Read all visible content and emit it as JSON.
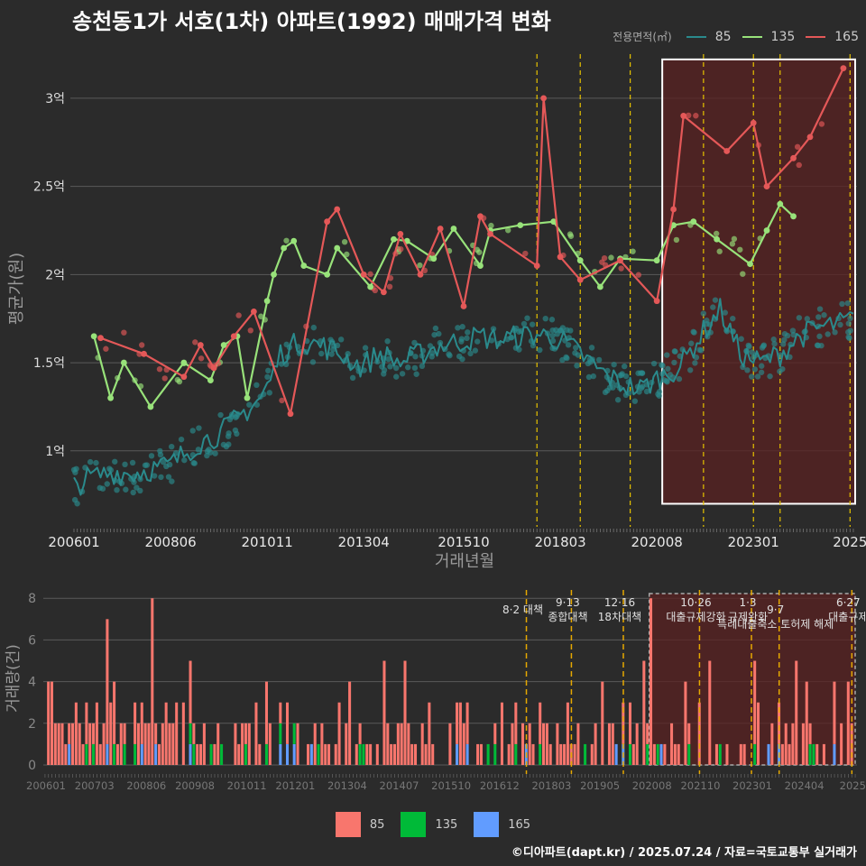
{
  "title": "송천동1가 서호(1차) 아파트(1992) 매매가격 변화",
  "footer": "©디아파트(dapt.kr) / 2025.07.24 / 자료=국토교통부 실거래가",
  "colors": {
    "s85": "#2a8a8c",
    "s135": "#98e27a",
    "s165": "#e45858",
    "bar85": "#f8766d",
    "bar135": "#00ba38",
    "bar165": "#619cff",
    "policy": "#e6c200",
    "highlight": "#5a2222",
    "bg": "#2b2b2b",
    "grid": "#5a5a5a"
  },
  "chart_data": [
    {
      "type": "line",
      "legend_title": "전용면적(㎡)",
      "legend_placement": "top-right",
      "xlabel": "거래년월",
      "ylabel": "평균가(원)",
      "x_tick_labels": [
        "200601",
        "200806",
        "201011",
        "201304",
        "201510",
        "201803",
        "202008",
        "202301",
        "2025"
      ],
      "y_ticks": [
        {
          "value": 1.0,
          "label": "1억"
        },
        {
          "value": 1.5,
          "label": "1.5억"
        },
        {
          "value": 2.0,
          "label": "2억"
        },
        {
          "value": 2.5,
          "label": "2.5억"
        },
        {
          "value": 3.0,
          "label": "3억"
        }
      ],
      "ylim": [
        0.6,
        3.25
      ],
      "x_range": [
        "2006-01",
        "2025-07"
      ],
      "grid": true,
      "policy_lines": [
        "2017-08",
        "2018-09",
        "2019-12",
        "2021-10",
        "2023-01",
        "2023-09",
        "2025-06"
      ],
      "highlight_range": [
        "2020-08",
        "2025-07"
      ],
      "series": [
        {
          "name": "85",
          "points": [
            [
              "2006-01",
              0.8
            ],
            [
              "2006-06",
              0.85
            ],
            [
              "2007-01",
              0.88
            ],
            [
              "2007-06",
              0.87
            ],
            [
              "2008-01",
              0.9
            ],
            [
              "2008-06",
              0.92
            ],
            [
              "2008-11",
              1.0
            ],
            [
              "2009-03",
              1.05
            ],
            [
              "2009-09",
              1.1
            ],
            [
              "2010-03",
              1.2
            ],
            [
              "2010-09",
              1.3
            ],
            [
              "2010-12",
              1.4
            ],
            [
              "2011-03",
              1.55
            ],
            [
              "2011-09",
              1.62
            ],
            [
              "2012-03",
              1.6
            ],
            [
              "2012-09",
              1.55
            ],
            [
              "2013-03",
              1.48
            ],
            [
              "2013-09",
              1.55
            ],
            [
              "2014-03",
              1.5
            ],
            [
              "2014-09",
              1.55
            ],
            [
              "2015-03",
              1.6
            ],
            [
              "2015-09",
              1.62
            ],
            [
              "2016-03",
              1.65
            ],
            [
              "2016-09",
              1.63
            ],
            [
              "2017-03",
              1.65
            ],
            [
              "2017-09",
              1.66
            ],
            [
              "2018-03",
              1.63
            ],
            [
              "2018-09",
              1.55
            ],
            [
              "2019-03",
              1.45
            ],
            [
              "2019-09",
              1.38
            ],
            [
              "2020-03",
              1.35
            ],
            [
              "2020-09",
              1.42
            ],
            [
              "2021-03",
              1.48
            ],
            [
              "2021-09",
              1.65
            ],
            [
              "2022-03",
              1.8
            ],
            [
              "2022-09",
              1.55
            ],
            [
              "2023-03",
              1.5
            ],
            [
              "2023-09",
              1.55
            ],
            [
              "2024-03",
              1.65
            ],
            [
              "2024-09",
              1.7
            ],
            [
              "2025-03",
              1.72
            ],
            [
              "2025-07",
              1.75
            ]
          ]
        },
        {
          "name": "135",
          "points": [
            [
              "2006-07",
              1.65
            ],
            [
              "2006-12",
              1.3
            ],
            [
              "2007-04",
              1.5
            ],
            [
              "2007-12",
              1.25
            ],
            [
              "2008-10",
              1.5
            ],
            [
              "2009-06",
              1.4
            ],
            [
              "2009-10",
              1.6
            ],
            [
              "2010-02",
              1.65
            ],
            [
              "2010-05",
              1.3
            ],
            [
              "2010-11",
              1.85
            ],
            [
              "2011-01",
              2.0
            ],
            [
              "2011-04",
              2.15
            ],
            [
              "2011-07",
              2.19
            ],
            [
              "2011-10",
              2.05
            ],
            [
              "2012-05",
              2.0
            ],
            [
              "2012-08",
              2.15
            ],
            [
              "2013-06",
              1.93
            ],
            [
              "2014-01",
              2.2
            ],
            [
              "2014-05",
              2.19
            ],
            [
              "2015-01",
              2.09
            ],
            [
              "2015-07",
              2.26
            ],
            [
              "2016-03",
              2.05
            ],
            [
              "2016-06",
              2.25
            ],
            [
              "2017-03",
              2.28
            ],
            [
              "2018-01",
              2.3
            ],
            [
              "2018-09",
              2.08
            ],
            [
              "2019-03",
              1.93
            ],
            [
              "2019-09",
              2.09
            ],
            [
              "2020-08",
              2.08
            ],
            [
              "2021-01",
              2.28
            ],
            [
              "2021-07",
              2.3
            ],
            [
              "2022-02",
              2.2
            ],
            [
              "2022-12",
              2.06
            ],
            [
              "2023-05",
              2.25
            ],
            [
              "2023-09",
              2.4
            ],
            [
              "2024-01",
              2.33
            ]
          ]
        },
        {
          "name": "165",
          "points": [
            [
              "2006-09",
              1.64
            ],
            [
              "2007-10",
              1.55
            ],
            [
              "2008-10",
              1.42
            ],
            [
              "2009-03",
              1.6
            ],
            [
              "2009-07",
              1.47
            ],
            [
              "2010-01",
              1.65
            ],
            [
              "2010-07",
              1.79
            ],
            [
              "2011-06",
              1.21
            ],
            [
              "2012-05",
              2.3
            ],
            [
              "2012-08",
              2.37
            ],
            [
              "2013-04",
              2.0
            ],
            [
              "2013-10",
              1.9
            ],
            [
              "2014-03",
              2.23
            ],
            [
              "2014-09",
              2.0
            ],
            [
              "2015-03",
              2.26
            ],
            [
              "2015-10",
              1.82
            ],
            [
              "2016-03",
              2.33
            ],
            [
              "2016-06",
              2.23
            ],
            [
              "2017-08",
              2.05
            ],
            [
              "2017-10",
              3.0
            ],
            [
              "2018-03",
              2.1
            ],
            [
              "2018-09",
              1.97
            ],
            [
              "2019-09",
              2.08
            ],
            [
              "2020-08",
              1.85
            ],
            [
              "2021-01",
              2.37
            ],
            [
              "2021-04",
              2.9
            ],
            [
              "2022-05",
              2.7
            ],
            [
              "2023-01",
              2.86
            ],
            [
              "2023-05",
              2.5
            ],
            [
              "2024-01",
              2.66
            ],
            [
              "2024-06",
              2.78
            ],
            [
              "2025-04",
              3.17
            ]
          ]
        }
      ],
      "scatter_note": "individual transactions"
    },
    {
      "type": "bar",
      "stacked": true,
      "ylabel": "거래량(건)",
      "y_ticks": [
        0,
        2,
        4,
        6,
        8
      ],
      "ylim": [
        0,
        8.4
      ],
      "x_tick_labels": [
        "200601",
        "200703",
        "200806",
        "200908",
        "201011",
        "201201",
        "201304",
        "201407",
        "201510",
        "201612",
        "201803",
        "201905",
        "202008",
        "202110",
        "202301",
        "202404",
        "2025"
      ],
      "x_range": [
        "2006-01",
        "2025-07"
      ],
      "series_names": [
        "85",
        "135",
        "165"
      ],
      "annotations": [
        {
          "date": "2017-08",
          "lines": [
            "8·2 대책"
          ],
          "level": 1
        },
        {
          "date": "2018-09",
          "lines": [
            "9·13",
            "종합대책"
          ],
          "level": 0
        },
        {
          "date": "2019-12",
          "lines": [
            "12·16",
            "18차대책"
          ],
          "level": 0
        },
        {
          "date": "2021-10",
          "lines": [
            "10·26",
            "대출규제강화"
          ],
          "level": 0
        },
        {
          "date": "2023-01",
          "lines": [
            "1·3",
            "규제완화"
          ],
          "level": 0
        },
        {
          "date": "2023-09",
          "lines": [
            "9·7",
            "특례대출축소 토허제 해제"
          ],
          "level": 1
        },
        {
          "date": "2025-06",
          "lines": [
            "6·27",
            "대출규제"
          ],
          "level": 0
        }
      ],
      "highlight_range": [
        "2020-08",
        "2025-07"
      ]
    }
  ]
}
